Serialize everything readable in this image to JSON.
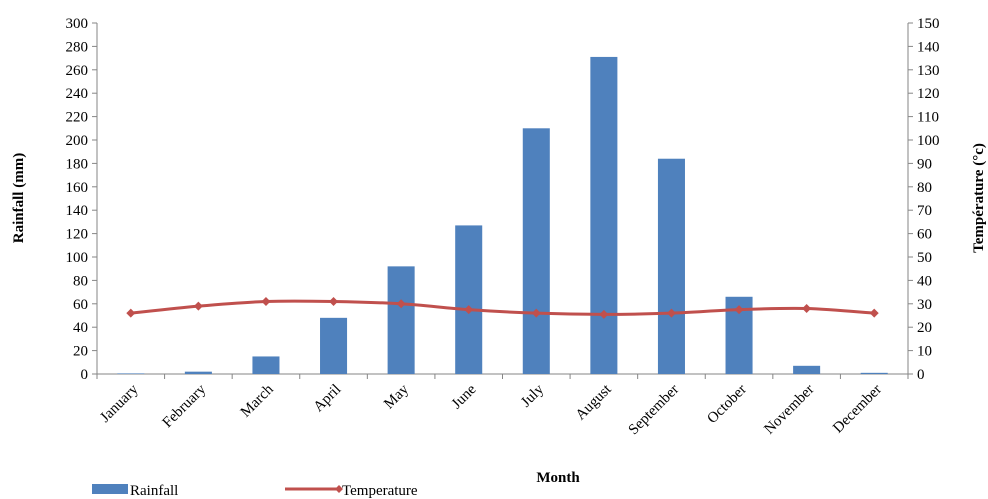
{
  "chart_data": {
    "type": "bar+line",
    "categories": [
      "January",
      "February",
      "March",
      "April",
      "May",
      "June",
      "July",
      "August",
      "September",
      "October",
      "November",
      "December"
    ],
    "series": [
      {
        "name": "Rainfall",
        "type": "bar",
        "axis": "left",
        "color": "#4F81BD",
        "values": [
          0.5,
          2,
          15,
          48,
          92,
          127,
          210,
          271,
          184,
          66,
          7,
          1
        ]
      },
      {
        "name": "Temperature",
        "type": "line",
        "axis": "right",
        "color": "#C0504D",
        "values": [
          26,
          29,
          31,
          31,
          30,
          27.5,
          26,
          25.5,
          26,
          27.5,
          28,
          26
        ]
      }
    ],
    "xlabel": "Month",
    "ylabel_left": "Rainfall (mm)",
    "ylabel_right": "Température (°c)",
    "ylim_left": [
      0,
      300
    ],
    "yticks_left": [
      0,
      20,
      40,
      60,
      80,
      100,
      120,
      140,
      160,
      180,
      200,
      220,
      240,
      260,
      280,
      300
    ],
    "ylim_right": [
      0,
      150
    ],
    "yticks_right": [
      0,
      10,
      20,
      30,
      40,
      50,
      60,
      70,
      80,
      90,
      100,
      110,
      120,
      130,
      140,
      150
    ],
    "grid": false,
    "legend_position": "bottom-left"
  }
}
